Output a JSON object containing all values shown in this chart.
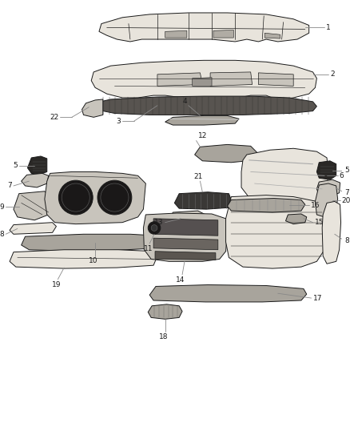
{
  "bg_color": "#ffffff",
  "line_color": "#1a1a1a",
  "fill_light": "#e8e4dc",
  "fill_mid": "#c8c4bc",
  "fill_dark": "#a8a49c",
  "fill_darkest": "#585450",
  "label_color": "#1a1a1a",
  "leader_color": "#888888",
  "fs": 6.5,
  "lw_part": 0.7,
  "lw_leader": 0.6
}
